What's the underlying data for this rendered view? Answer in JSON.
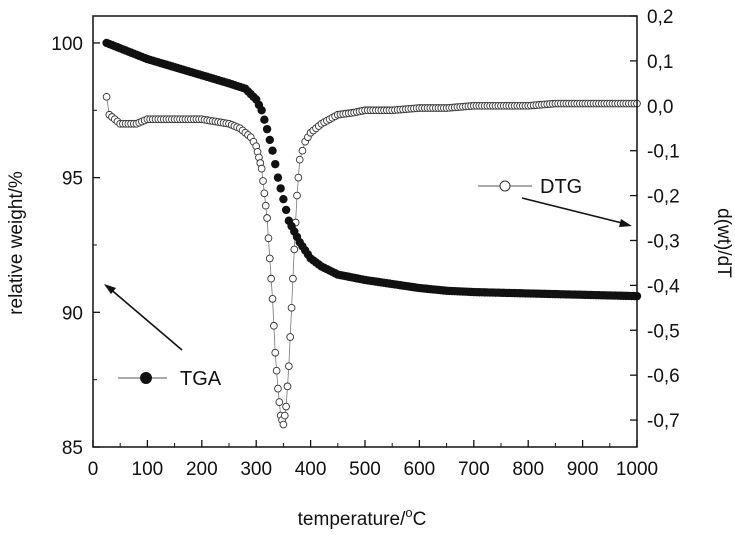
{
  "chart_data": {
    "type": "scatter",
    "xlabel": "temperature/",
    "xlabel_sup": "o",
    "xlabel_unit": "C",
    "ylabel_left": "relative weight/%",
    "ylabel_right": "d(wt)/dT",
    "xlim": [
      0,
      1000
    ],
    "ylim_left": [
      85,
      101
    ],
    "ylim_right": [
      -0.76,
      0.2
    ],
    "x_ticks": [
      "0",
      "100",
      "200",
      "300",
      "400",
      "500",
      "600",
      "700",
      "800",
      "900",
      "1000"
    ],
    "y_left_ticks": [
      "85",
      "90",
      "95",
      "100"
    ],
    "y_right_ticks": [
      "0,2",
      "0,1",
      "0,0",
      "-0,1",
      "-0,2",
      "-0,3",
      "-0,4",
      "-0,5",
      "-0,6",
      "-0,7"
    ],
    "legend": [
      {
        "label": "TGA",
        "marker": "filled-circle",
        "arrow": "left-axis"
      },
      {
        "label": "DTG",
        "marker": "open-circle",
        "arrow": "right-axis"
      }
    ],
    "series": [
      {
        "name": "TGA",
        "axis": "left",
        "marker": "filled",
        "x": [
          25,
          50,
          100,
          150,
          200,
          250,
          280,
          300,
          310,
          320,
          330,
          340,
          350,
          360,
          370,
          380,
          390,
          400,
          420,
          450,
          500,
          550,
          600,
          650,
          700,
          800,
          900,
          1000
        ],
        "values": [
          100.0,
          99.8,
          99.4,
          99.1,
          98.8,
          98.5,
          98.3,
          97.9,
          97.5,
          96.8,
          96.0,
          95.0,
          94.2,
          93.4,
          93.0,
          92.6,
          92.3,
          92.0,
          91.7,
          91.4,
          91.2,
          91.05,
          90.9,
          90.8,
          90.75,
          90.7,
          90.65,
          90.6
        ]
      },
      {
        "name": "DTG",
        "axis": "right",
        "marker": "open",
        "x": [
          25,
          30,
          40,
          50,
          60,
          80,
          100,
          150,
          200,
          250,
          270,
          290,
          300,
          310,
          320,
          330,
          335,
          340,
          345,
          350,
          355,
          360,
          365,
          370,
          375,
          380,
          390,
          400,
          420,
          450,
          480,
          500,
          550,
          600,
          650,
          700,
          750,
          800,
          850,
          900,
          950,
          1000
        ],
        "values": [
          0.02,
          -0.02,
          -0.03,
          -0.04,
          -0.04,
          -0.04,
          -0.03,
          -0.03,
          -0.03,
          -0.04,
          -0.05,
          -0.07,
          -0.09,
          -0.14,
          -0.25,
          -0.43,
          -0.55,
          -0.63,
          -0.69,
          -0.71,
          -0.67,
          -0.58,
          -0.45,
          -0.32,
          -0.2,
          -0.12,
          -0.08,
          -0.06,
          -0.04,
          -0.02,
          -0.015,
          -0.01,
          -0.01,
          -0.005,
          -0.005,
          0.0,
          0.0,
          0.0,
          0.005,
          0.005,
          0.005,
          0.005
        ]
      }
    ]
  }
}
